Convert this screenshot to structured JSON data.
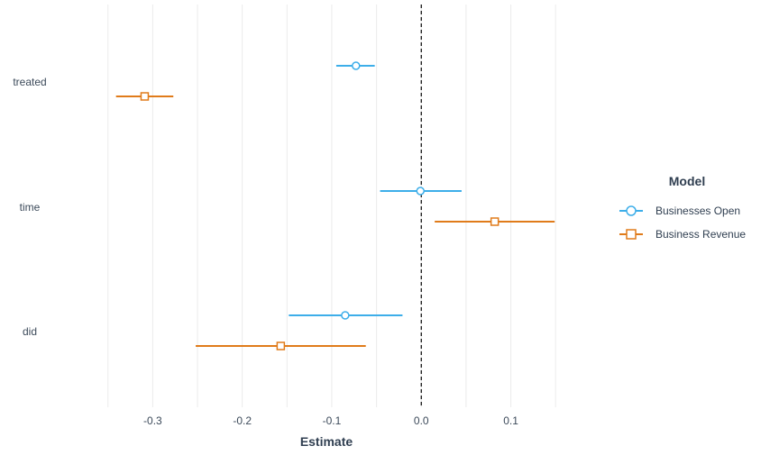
{
  "chart_data": {
    "type": "coefficient-plot",
    "xlabel": "Estimate",
    "ylabel": "",
    "xlim": [
      -0.385,
      0.175
    ],
    "x_ticks": [
      -0.3,
      -0.2,
      -0.1,
      0.0,
      0.1
    ],
    "x_tick_labels": [
      "-0.3",
      "-0.2",
      "-0.1",
      "0.0",
      "0.1"
    ],
    "reference_line": 0,
    "grid": "vertical-major",
    "categories": [
      "treated",
      "time",
      "did"
    ],
    "legend": {
      "title": "Model",
      "position": "right"
    },
    "series": [
      {
        "name": "Businesses Open",
        "color": "#3daee9",
        "marker": "circle",
        "points": [
          {
            "term": "treated",
            "estimate": -0.073,
            "low": -0.095,
            "high": -0.052
          },
          {
            "term": "time",
            "estimate": -0.001,
            "low": -0.046,
            "high": 0.045
          },
          {
            "term": "did",
            "estimate": -0.085,
            "low": -0.148,
            "high": -0.021
          }
        ]
      },
      {
        "name": "Business Revenue",
        "color": "#e07b1a",
        "marker": "square",
        "points": [
          {
            "term": "treated",
            "estimate": -0.309,
            "low": -0.341,
            "high": -0.277
          },
          {
            "term": "time",
            "estimate": 0.082,
            "low": 0.015,
            "high": 0.149
          },
          {
            "term": "did",
            "estimate": -0.157,
            "low": -0.252,
            "high": -0.062
          }
        ]
      }
    ]
  }
}
